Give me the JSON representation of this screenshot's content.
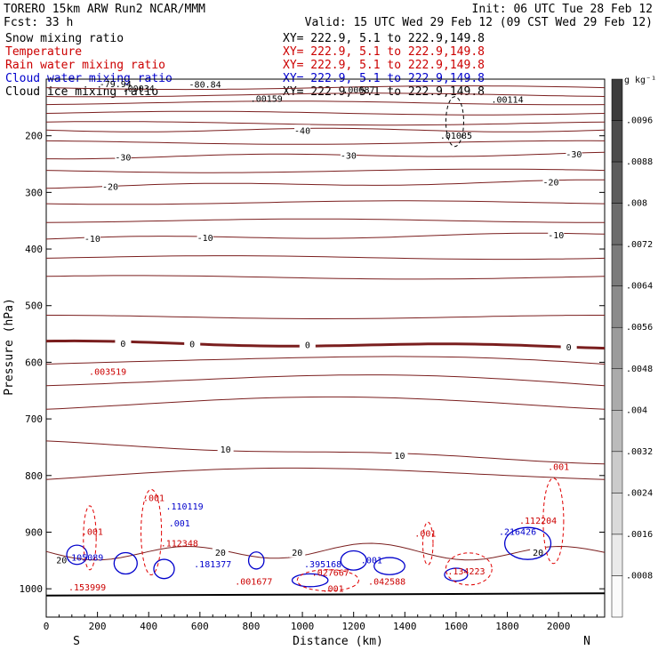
{
  "header": {
    "line1_left": "TORERO  15km ARW   Run2    NCAR/MMM",
    "line1_right": "Init: 06 UTC Tue 28 Feb 12",
    "line2_left": "Fcst:    33 h",
    "line2_right": "Valid: 15 UTC Wed 29 Feb 12 (09 CST Wed 29 Feb 12)"
  },
  "fields": [
    {
      "name": "Snow mixing ratio",
      "xy": "XY= 222.9,  5.1 to 222.9,149.8",
      "color": "#000000"
    },
    {
      "name": "Temperature",
      "xy": "XY= 222.9,  5.1 to 222.9,149.8",
      "color": "#cc0000"
    },
    {
      "name": "Rain water mixing ratio",
      "xy": "XY= 222.9,  5.1 to 222.9,149.8",
      "color": "#cc0000"
    },
    {
      "name": "Cloud water mixing ratio",
      "xy": "XY= 222.9,  5.1 to 222.9,149.8",
      "color": "#0000cc"
    },
    {
      "name": "Cloud ice mixing ratio",
      "xy": "XY= 222.9,  5.1 to 222.9,149.8",
      "color": "#000000"
    }
  ],
  "colors": {
    "temperature": "#7a1e1e",
    "rain": "#e00000",
    "cloud_water": "#0000cc",
    "text_black": "#000000"
  },
  "chart_data": {
    "type": "contour",
    "xlabel": "Distance (km)",
    "ylabel": "Pressure (hPa)",
    "x_start_label": "S",
    "x_end_label": "N",
    "xlim": [
      0,
      2180
    ],
    "ylim": [
      1050,
      100
    ],
    "x_ticks": [
      0,
      200,
      400,
      600,
      800,
      1000,
      1200,
      1400,
      1600,
      1800,
      2000
    ],
    "y_ticks": [
      200,
      300,
      400,
      500,
      600,
      700,
      800,
      900,
      1000
    ],
    "temperature_contours": [
      {
        "label": "-40",
        "p": 190,
        "tilt": 0,
        "labels_at": [
          1000
        ]
      },
      {
        "label": "-30",
        "p": 238,
        "tilt": -4,
        "labels_at": [
          300,
          1180,
          2060
        ]
      },
      {
        "label": "-20",
        "p": 290,
        "tilt": -6,
        "labels_at": [
          250,
          1970
        ]
      },
      {
        "label": "-10",
        "p": 382,
        "tilt": -5,
        "labels_at": [
          180,
          620,
          1990
        ]
      },
      {
        "label": "0",
        "p": 565,
        "tilt": 5,
        "labels_at": [
          300,
          570,
          1020,
          2040
        ]
      },
      {
        "label": "10",
        "p": 742,
        "tilt": 22,
        "labels_at": [
          700,
          1380
        ]
      },
      {
        "label": "20",
        "p": 935,
        "tilt": 0,
        "labels_at": [
          680,
          980,
          1920
        ]
      }
    ],
    "colorbar": {
      "unit": "g kg⁻¹",
      "labels": [
        ".0096",
        ".0088",
        ".008",
        ".0072",
        ".0064",
        ".0056",
        ".0048",
        ".004",
        ".0032",
        ".0024",
        ".0016",
        ".0008"
      ]
    },
    "annotations": [
      {
        "text": "-80.84",
        "x": 620,
        "p": 115,
        "color": "#000000"
      },
      {
        "text": "-79.94",
        "x": 270,
        "p": 114,
        "color": "#000000"
      },
      {
        "text": ".00034",
        "x": 360,
        "p": 122,
        "color": "#000000"
      },
      {
        "text": ".00159",
        "x": 860,
        "p": 140,
        "color": "#000000"
      },
      {
        "text": ".00087",
        "x": 1220,
        "p": 124,
        "color": "#000000"
      },
      {
        "text": ".00114",
        "x": 1800,
        "p": 142,
        "color": "#000000"
      },
      {
        "text": ".01085",
        "x": 1600,
        "p": 205,
        "color": "#000000"
      },
      {
        "text": ".003519",
        "x": 240,
        "p": 622,
        "color": "#cc0000"
      },
      {
        "text": ".001",
        "x": 2000,
        "p": 790,
        "color": "#cc0000"
      },
      {
        "text": ".001",
        "x": 420,
        "p": 845,
        "color": "#cc0000"
      },
      {
        "text": ".001",
        "x": 180,
        "p": 905,
        "color": "#cc0000"
      },
      {
        "text": ".112204",
        "x": 1920,
        "p": 885,
        "color": "#cc0000"
      },
      {
        "text": ".216426",
        "x": 1840,
        "p": 905,
        "color": "#0000cc"
      },
      {
        "text": ".110119",
        "x": 540,
        "p": 860,
        "color": "#0000cc"
      },
      {
        "text": ".001",
        "x": 520,
        "p": 890,
        "color": "#0000cc"
      },
      {
        "text": ".112348",
        "x": 520,
        "p": 925,
        "color": "#cc0000"
      },
      {
        "text": ".105089",
        "x": 150,
        "p": 950,
        "color": "#0000cc"
      },
      {
        "text": ".181377",
        "x": 650,
        "p": 962,
        "color": "#0000cc"
      },
      {
        "text": ".001677",
        "x": 810,
        "p": 993,
        "color": "#cc0000"
      },
      {
        "text": ".395168",
        "x": 1080,
        "p": 962,
        "color": "#0000cc"
      },
      {
        "text": ".027667",
        "x": 1110,
        "p": 977,
        "color": "#cc0000"
      },
      {
        "text": ".001",
        "x": 1270,
        "p": 955,
        "color": "#0000cc"
      },
      {
        "text": ".042588",
        "x": 1330,
        "p": 993,
        "color": "#cc0000"
      },
      {
        "text": ".134223",
        "x": 1640,
        "p": 975,
        "color": "#cc0000"
      },
      {
        "text": ".001",
        "x": 1480,
        "p": 908,
        "color": "#cc0000"
      },
      {
        "text": ".153999",
        "x": 160,
        "p": 1003,
        "color": "#cc0000"
      },
      {
        "text": ".001",
        "x": 1120,
        "p": 1005,
        "color": "#cc0000"
      },
      {
        "text": "20",
        "x": 60,
        "p": 955,
        "color": "#000000"
      }
    ]
  }
}
